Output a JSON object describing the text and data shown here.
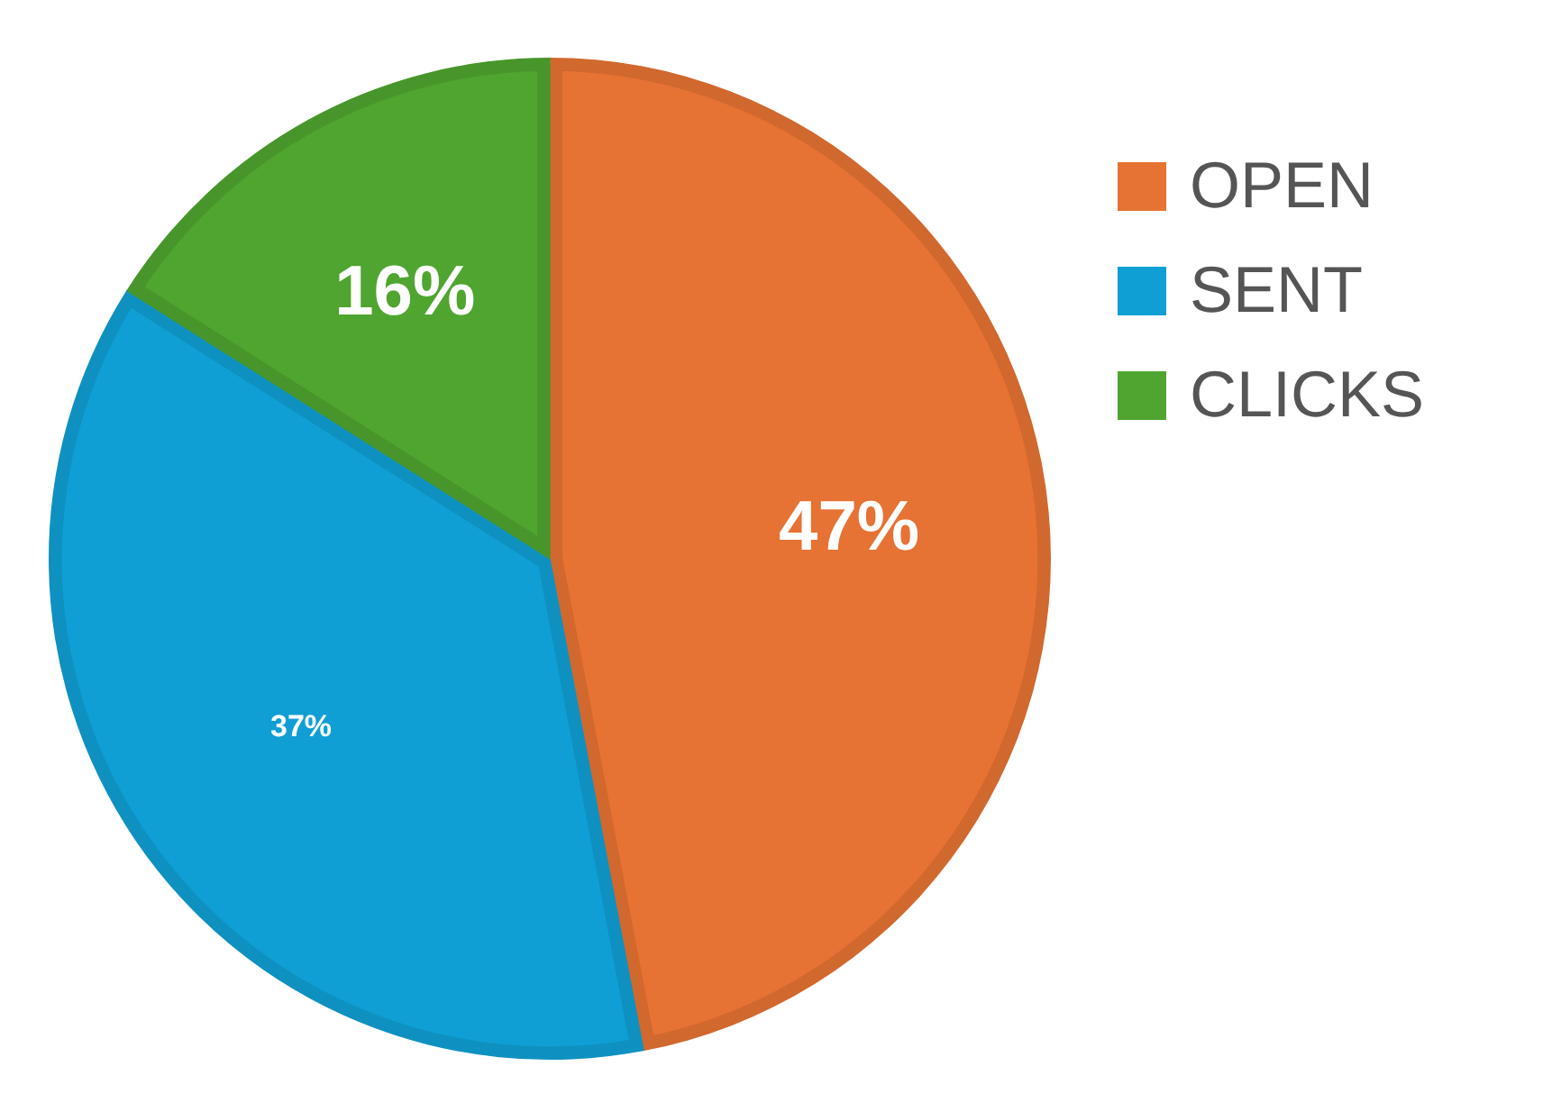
{
  "chart_data": {
    "type": "pie",
    "categories": [
      "OPEN",
      "SENT",
      "CLICKS"
    ],
    "values": [
      47,
      37,
      16
    ],
    "value_labels": [
      "47%",
      "37%",
      "16%"
    ],
    "colors": [
      "#e67233",
      "#0f9fd4",
      "#4fa52f"
    ],
    "legend": "right"
  }
}
